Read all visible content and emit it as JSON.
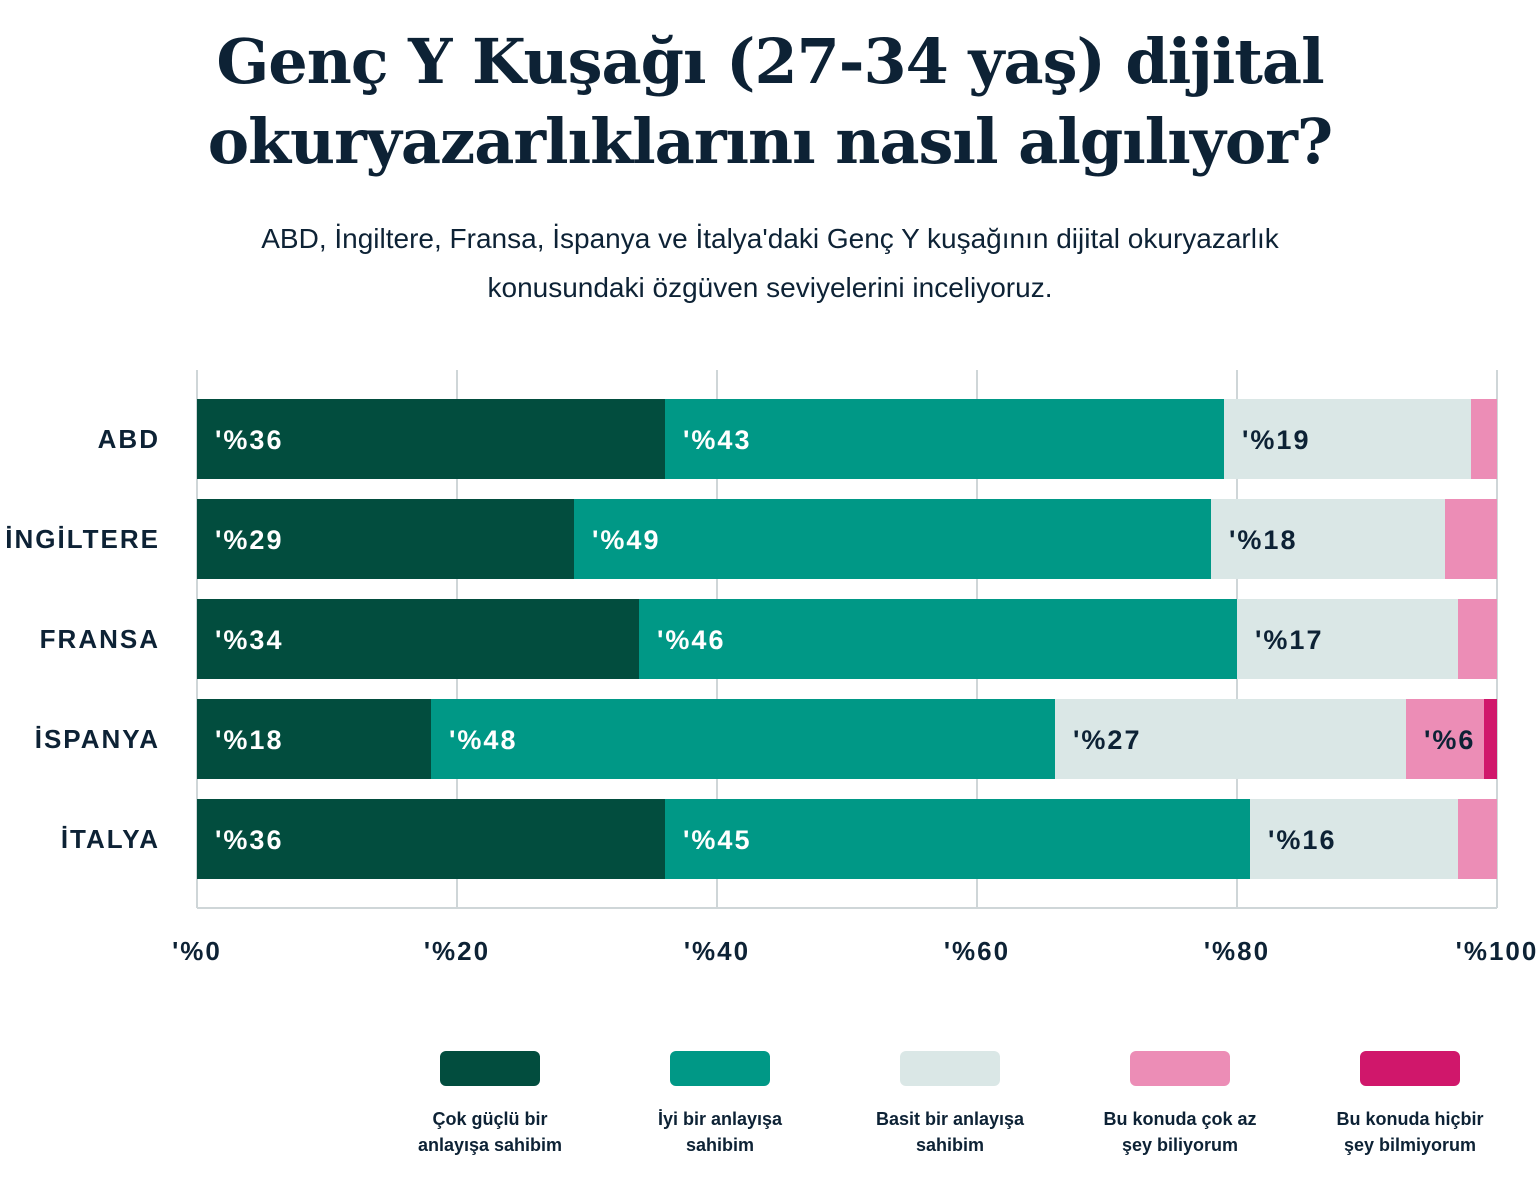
{
  "title": "Genç Y Kuşağı (27-34 yaş) dijital okuryazarlıklarını nasıl algılıyor?",
  "subtitle": "ABD, İngiltere, Fransa, İspanya ve İtalya'daki Genç Y kuşağının dijital okuryazarlık konusundaki özgüven seviyelerini inceliyoruz.",
  "chart_data": {
    "type": "bar",
    "orientation": "horizontal",
    "stacked": true,
    "categories": [
      "ABD",
      "İNGİLTERE",
      "FRANSA",
      "İSPANYA",
      "İTALYA"
    ],
    "xlim": [
      0,
      100
    ],
    "xticks": [
      0,
      20,
      40,
      60,
      80,
      100
    ],
    "xtick_labels": [
      "'%0",
      "'%20",
      "'%40",
      "'%60",
      "'%80",
      "'%100"
    ],
    "grid": true,
    "legend_position": "bottom",
    "series": [
      {
        "name": "Çok güçlü bir anlayışa sahibim",
        "color": "#024d3e",
        "label_color": "#ffffff",
        "values": [
          36,
          29,
          34,
          18,
          36
        ],
        "labels": [
          "'%36",
          "'%29",
          "'%34",
          "'%18",
          "'%36"
        ]
      },
      {
        "name": "İyi bir anlayışa sahibim",
        "color": "#009886",
        "label_color": "#ffffff",
        "values": [
          43,
          49,
          46,
          48,
          45
        ],
        "labels": [
          "'%43",
          "'%49",
          "'%46",
          "'%48",
          "'%45"
        ]
      },
      {
        "name": "Basit bir anlayışa sahibim",
        "color": "#dae7e6",
        "label_color": "#0d2235",
        "values": [
          19,
          18,
          17,
          27,
          16
        ],
        "labels": [
          "'%19",
          "'%18",
          "'%17",
          "'%27",
          "'%16"
        ]
      },
      {
        "name": "Bu konuda çok az şey biliyorum",
        "color": "#ec8db6",
        "label_color": "#0d2235",
        "values": [
          2,
          4,
          3,
          6,
          3
        ],
        "labels": [
          "",
          "",
          "",
          "'%6",
          ""
        ]
      },
      {
        "name": "Bu konuda hiçbir şey bilmiyorum",
        "color": "#d0176b",
        "label_color": "#ffffff",
        "values": [
          0,
          0,
          0,
          1,
          0
        ],
        "labels": [
          "",
          "",
          "",
          "",
          ""
        ]
      }
    ]
  }
}
